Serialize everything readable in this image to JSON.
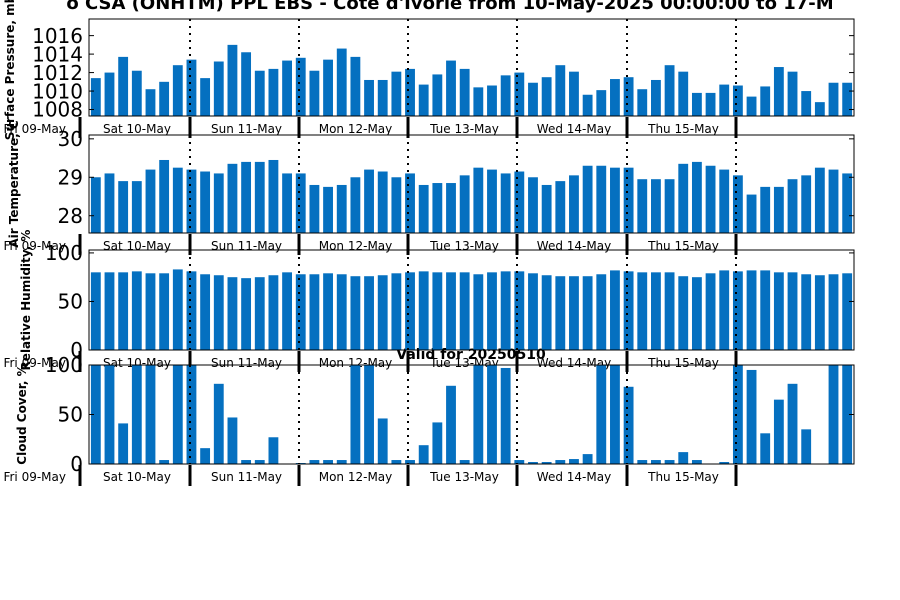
{
  "title": "o CSA (ONHTM) PPL EBS - Cote d'Ivorie from 10-May-2025 00:00:00 to 17-M",
  "valid_label": "Valid for 20250510",
  "colors": {
    "bar": "#0570c0",
    "axis": "#000000",
    "background": "#ffffff"
  },
  "day_labels": [
    "Fri 09-May",
    "Sat 10-May",
    "Sun 11-May",
    "Mon 12-May",
    "Tue 13-May",
    "Wed 14-May",
    "Thu 15-May"
  ],
  "chart_data": [
    {
      "type": "bar",
      "ylabel": "Surface Pressure, mb",
      "ylim": [
        1007.3,
        1017.8
      ],
      "yticks": [
        1008,
        1010,
        1012,
        1014,
        1016
      ],
      "values": [
        1011.4,
        1012.0,
        1013.7,
        1012.2,
        1010.2,
        1011.0,
        1012.8,
        1013.4,
        1011.4,
        1013.2,
        1015.0,
        1014.2,
        1012.2,
        1012.4,
        1013.3,
        1013.6,
        1012.2,
        1013.4,
        1014.6,
        1013.7,
        1011.2,
        1011.2,
        1012.1,
        1012.4,
        1010.7,
        1011.8,
        1013.3,
        1012.4,
        1010.4,
        1010.6,
        1011.7,
        1012.0,
        1010.9,
        1011.5,
        1012.8,
        1012.1,
        1009.6,
        1010.1,
        1011.3,
        1011.5,
        1010.2,
        1011.2,
        1012.8,
        1012.1,
        1009.8,
        1009.8,
        1010.7,
        1010.6,
        1009.4,
        1010.5,
        1012.6,
        1012.1,
        1010.0,
        1008.8,
        1010.9,
        1010.9
      ],
      "grid": false
    },
    {
      "type": "bar",
      "ylabel": "Air Temperature, C",
      "ylim": [
        27.55,
        30.1
      ],
      "yticks": [
        28,
        29,
        30
      ],
      "values": [
        29.0,
        29.1,
        28.9,
        28.9,
        29.2,
        29.45,
        29.25,
        29.2,
        29.15,
        29.1,
        29.35,
        29.4,
        29.4,
        29.45,
        29.1,
        29.1,
        28.8,
        28.75,
        28.8,
        29.0,
        29.2,
        29.15,
        29.0,
        29.1,
        28.8,
        28.85,
        28.85,
        29.05,
        29.25,
        29.2,
        29.1,
        29.15,
        29.0,
        28.8,
        28.9,
        29.05,
        29.3,
        29.3,
        29.25,
        29.25,
        28.95,
        28.95,
        28.95,
        29.35,
        29.4,
        29.3,
        29.2,
        29.05,
        28.55,
        28.75,
        28.75,
        28.95,
        29.05,
        29.25,
        29.2,
        29.1
      ],
      "grid": false
    },
    {
      "type": "bar",
      "ylabel": "Relative Humidity, %",
      "ylim": [
        0,
        103
      ],
      "yticks": [
        0,
        50,
        100
      ],
      "values": [
        80,
        80,
        80,
        81,
        79,
        79,
        83,
        81,
        78,
        77,
        75,
        74,
        75,
        77,
        80,
        78,
        78,
        79,
        78,
        76,
        76,
        77,
        79,
        80,
        81,
        80,
        80,
        80,
        78,
        80,
        81,
        81,
        79,
        77,
        76,
        76,
        76,
        78,
        82,
        81,
        80,
        80,
        80,
        76,
        75,
        79,
        82,
        81,
        82,
        82,
        80,
        80,
        78,
        77,
        78,
        79
      ],
      "grid": false
    },
    {
      "type": "bar",
      "ylabel": "Cloud Cover, %",
      "ylim": [
        0,
        100
      ],
      "yticks": [
        0,
        50,
        100
      ],
      "values": [
        100,
        100,
        41,
        100,
        100,
        4,
        100,
        100,
        16,
        81,
        47,
        4,
        4,
        27,
        0,
        1,
        4,
        4,
        4,
        100,
        100,
        46,
        4,
        4,
        19,
        42,
        79,
        4,
        100,
        100,
        97,
        4,
        2,
        2,
        4,
        5,
        10,
        100,
        100,
        78,
        4,
        4,
        4,
        12,
        4,
        0,
        2,
        100,
        95,
        31,
        65,
        81,
        35,
        0,
        100,
        100
      ],
      "grid": false
    }
  ]
}
